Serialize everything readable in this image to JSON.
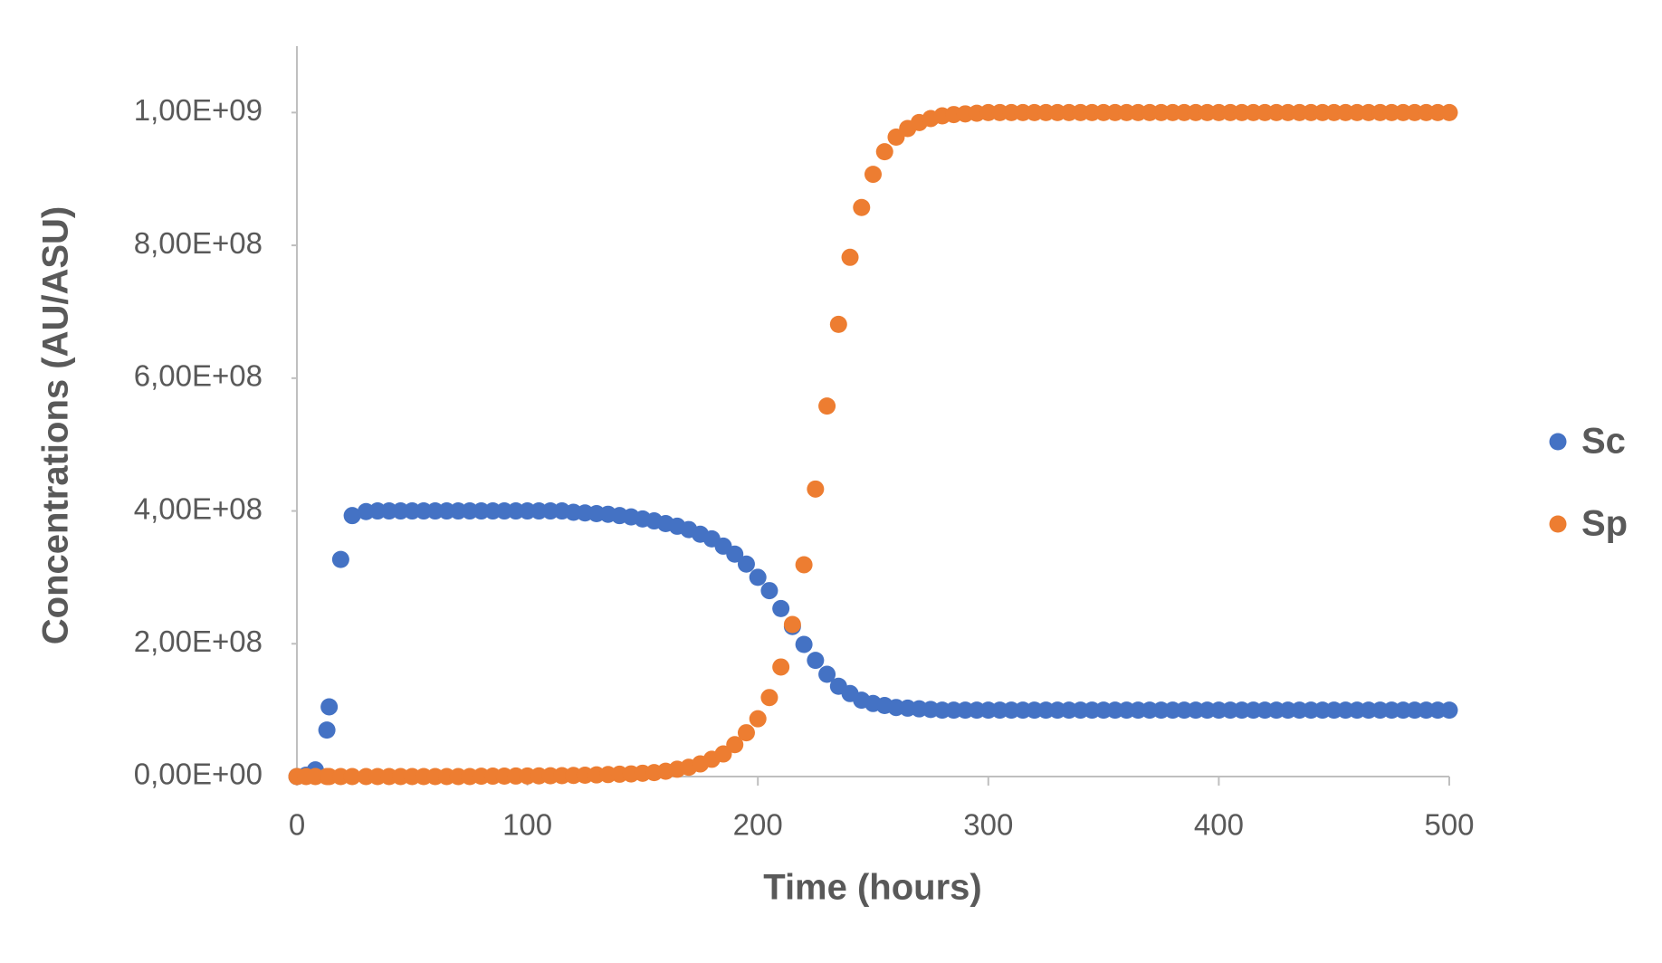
{
  "chart_data": {
    "type": "scatter",
    "x_label": "Time (hours)",
    "y_label": "Concentrations (AU/ASU)",
    "x": [
      0,
      4,
      8,
      13,
      14,
      19,
      24,
      30,
      35,
      40,
      45,
      50,
      55,
      60,
      65,
      70,
      75,
      80,
      85,
      90,
      95,
      100,
      105,
      110,
      115,
      120,
      125,
      130,
      135,
      140,
      145,
      150,
      155,
      160,
      165,
      170,
      175,
      180,
      185,
      190,
      195,
      200,
      205,
      210,
      215,
      220,
      225,
      230,
      235,
      240,
      245,
      250,
      255,
      260,
      265,
      270,
      275,
      280,
      285,
      290,
      295,
      300,
      305,
      310,
      315,
      320,
      325,
      330,
      335,
      340,
      345,
      350,
      355,
      360,
      365,
      370,
      375,
      380,
      385,
      390,
      395,
      400,
      405,
      410,
      415,
      420,
      425,
      430,
      435,
      440,
      445,
      450,
      455,
      460,
      465,
      470,
      475,
      480,
      485,
      490,
      495,
      500
    ],
    "series": [
      {
        "name": "Sc",
        "color": "#4472c4",
        "values": [
          0,
          2000000.0,
          10000000.0,
          70000000.0,
          105000000.0,
          327000000.0,
          393000000.0,
          399000000.0,
          400000000.0,
          400000000.0,
          400000000.0,
          400000000.0,
          400000000.0,
          400000000.0,
          400000000.0,
          400000000.0,
          400000000.0,
          400000000.0,
          400000000.0,
          400000000.0,
          400000000.0,
          400000000.0,
          400000000.0,
          400000000.0,
          400000000.0,
          398000000.0,
          397000000.0,
          396000000.0,
          395000000.0,
          393000000.0,
          391000000.0,
          388000000.0,
          385000000.0,
          381000000.0,
          377000000.0,
          372000000.0,
          365000000.0,
          358000000.0,
          347000000.0,
          335000000.0,
          320000000.0,
          300000000.0,
          280000000.0,
          253000000.0,
          226000000.0,
          199000000.0,
          175000000.0,
          154000000.0,
          136000000.0,
          125000000.0,
          115000000.0,
          110000000.0,
          107000000.0,
          104000000.0,
          103000000.0,
          102000000.0,
          101000000.0,
          100000000.0,
          100000000.0,
          100000000.0,
          100000000.0,
          100000000.0,
          100000000.0,
          100000000.0,
          100000000.0,
          100000000.0,
          100000000.0,
          100000000.0,
          100000000.0,
          100000000.0,
          100000000.0,
          100000000.0,
          100000000.0,
          100000000.0,
          100000000.0,
          100000000.0,
          100000000.0,
          100000000.0,
          100000000.0,
          100000000.0,
          100000000.0,
          100000000.0,
          100000000.0,
          100000000.0,
          100000000.0,
          100000000.0,
          100000000.0,
          100000000.0,
          100000000.0,
          100000000.0,
          100000000.0,
          100000000.0,
          100000000.0,
          100000000.0,
          100000000.0,
          100000000.0,
          100000000.0,
          100000000.0,
          100000000.0,
          100000000.0,
          100000000.0,
          100000000.0
        ]
      },
      {
        "name": "Sp",
        "color": "#ed7d31",
        "values": [
          0,
          0,
          0,
          0,
          0,
          0,
          0,
          0,
          0,
          0,
          0,
          0,
          0,
          0,
          0,
          0,
          0,
          500000.0,
          600000.0,
          700000.0,
          800000.0,
          900000.0,
          1000000.0,
          1200000.0,
          1400000.0,
          1700000.0,
          2000000.0,
          2500000.0,
          3000000.0,
          3500000.0,
          4000000.0,
          5000000.0,
          6000000.0,
          8000000.0,
          11000000.0,
          14000000.0,
          19000000.0,
          26000000.0,
          34000000.0,
          48000000.0,
          66000000.0,
          87000000.0,
          119000000.0,
          165000000.0,
          229000000.0,
          319000000.0,
          433000000.0,
          558000000.0,
          681000000.0,
          782000000.0,
          857000000.0,
          907000000.0,
          941000000.0,
          963000000.0,
          976000000.0,
          985000000.0,
          991000000.0,
          995000000.0,
          997000000.0,
          998000000.0,
          999000000.0,
          1000000000.0,
          1000000000.0,
          1000000000.0,
          1000000000.0,
          1000000000.0,
          1000000000.0,
          1000000000.0,
          1000000000.0,
          1000000000.0,
          1000000000.0,
          1000000000.0,
          1000000000.0,
          1000000000.0,
          1000000000.0,
          1000000000.0,
          1000000000.0,
          1000000000.0,
          1000000000.0,
          1000000000.0,
          1000000000.0,
          1000000000.0,
          1000000000.0,
          1000000000.0,
          1000000000.0,
          1000000000.0,
          1000000000.0,
          1000000000.0,
          1000000000.0,
          1000000000.0,
          1000000000.0,
          1000000000.0,
          1000000000.0,
          1000000000.0,
          1000000000.0,
          1000000000.0,
          1000000000.0,
          1000000000.0,
          1000000000.0,
          1000000000.0,
          1000000000.0,
          1000000000.0
        ]
      }
    ],
    "xlim": [
      0,
      500
    ],
    "xticks": [
      0,
      100,
      200,
      300,
      400,
      500
    ],
    "ylim": [
      0,
      1100000000.0
    ],
    "yticks": [
      {
        "value": 0,
        "label": "0,00E+00"
      },
      {
        "value": 200000000.0,
        "label": "2,00E+08"
      },
      {
        "value": 400000000.0,
        "label": "4,00E+08"
      },
      {
        "value": 600000000.0,
        "label": "6,00E+08"
      },
      {
        "value": 800000000.0,
        "label": "8,00E+08"
      },
      {
        "value": 1000000000.0,
        "label": "1,00E+09"
      }
    ],
    "legend": "right"
  }
}
